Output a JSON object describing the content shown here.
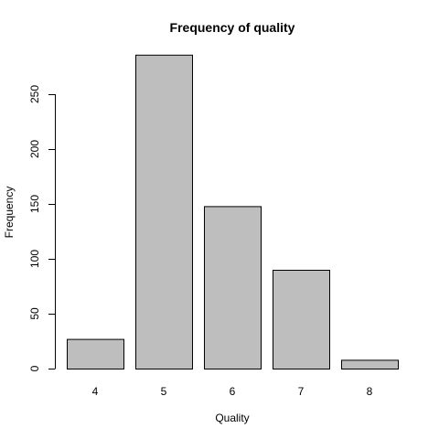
{
  "chart_data": {
    "type": "bar",
    "title": "Frequency of quality",
    "xlabel": "Quality",
    "ylabel": "Frequency",
    "categories": [
      "4",
      "5",
      "6",
      "7",
      "8"
    ],
    "values": [
      27,
      286,
      148,
      90,
      8
    ],
    "ylim": [
      0,
      286
    ],
    "yticks": [
      0,
      50,
      100,
      150,
      200,
      250
    ],
    "bar_color": "#bebebe",
    "grid": false,
    "legend": "none"
  }
}
